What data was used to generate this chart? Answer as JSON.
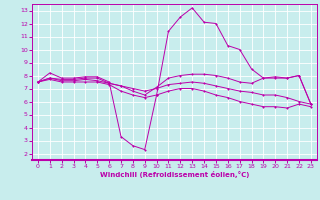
{
  "xlabel": "Windchill (Refroidissement éolien,°C)",
  "bg_color": "#c8eded",
  "line_color": "#bb00aa",
  "grid_color": "#ffffff",
  "xlim": [
    -0.5,
    23.5
  ],
  "ylim": [
    1.5,
    13.5
  ],
  "xticks": [
    0,
    1,
    2,
    3,
    4,
    5,
    6,
    7,
    8,
    9,
    10,
    11,
    12,
    13,
    14,
    15,
    16,
    17,
    18,
    19,
    20,
    21,
    22,
    23
  ],
  "yticks": [
    2,
    3,
    4,
    5,
    6,
    7,
    8,
    9,
    10,
    11,
    12,
    13
  ],
  "line1_x": [
    0,
    1,
    2,
    3,
    4,
    5,
    6,
    7,
    8,
    9,
    10,
    11,
    12,
    13,
    14,
    15,
    16,
    17,
    18,
    19,
    20,
    21,
    22,
    23
  ],
  "line1_y": [
    7.5,
    8.2,
    7.8,
    7.8,
    7.9,
    7.9,
    7.5,
    3.3,
    2.6,
    2.3,
    6.5,
    11.4,
    12.5,
    13.2,
    12.1,
    12.0,
    10.3,
    10.0,
    8.5,
    7.8,
    7.8,
    7.8,
    8.0,
    5.8
  ],
  "line2_x": [
    0,
    1,
    2,
    3,
    4,
    5,
    6,
    7,
    8,
    9,
    10,
    11,
    12,
    13,
    14,
    15,
    16,
    17,
    18,
    19,
    20,
    21,
    22,
    23
  ],
  "line2_y": [
    7.5,
    7.8,
    7.7,
    7.7,
    7.8,
    7.8,
    7.4,
    7.2,
    6.8,
    6.5,
    7.1,
    7.8,
    8.0,
    8.1,
    8.1,
    8.0,
    7.8,
    7.5,
    7.4,
    7.8,
    7.9,
    7.8,
    8.0,
    5.8
  ],
  "line3_x": [
    0,
    1,
    2,
    3,
    4,
    5,
    6,
    7,
    8,
    9,
    10,
    11,
    12,
    13,
    14,
    15,
    16,
    17,
    18,
    19,
    20,
    21,
    22,
    23
  ],
  "line3_y": [
    7.5,
    7.8,
    7.6,
    7.6,
    7.7,
    7.6,
    7.4,
    7.2,
    7.0,
    6.8,
    7.0,
    7.3,
    7.4,
    7.5,
    7.4,
    7.2,
    7.0,
    6.8,
    6.7,
    6.5,
    6.5,
    6.3,
    6.0,
    5.8
  ],
  "line4_x": [
    0,
    1,
    2,
    3,
    4,
    5,
    6,
    7,
    8,
    9,
    10,
    11,
    12,
    13,
    14,
    15,
    16,
    17,
    18,
    19,
    20,
    21,
    22,
    23
  ],
  "line4_y": [
    7.5,
    7.7,
    7.5,
    7.5,
    7.5,
    7.5,
    7.3,
    6.8,
    6.5,
    6.3,
    6.5,
    6.8,
    7.0,
    7.0,
    6.8,
    6.5,
    6.3,
    6.0,
    5.8,
    5.6,
    5.6,
    5.5,
    5.8,
    5.6
  ]
}
